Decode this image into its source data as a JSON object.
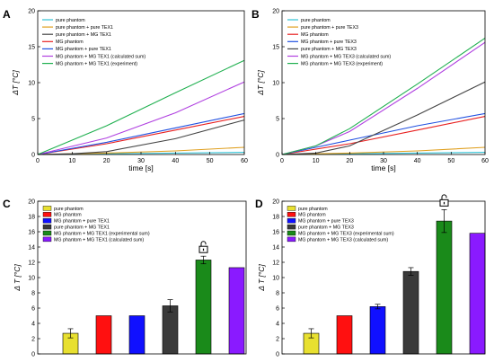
{
  "chart_data": [
    {
      "panel": "A",
      "type": "line",
      "xlabel": "time [s]",
      "ylabel": "ΔT [°C]",
      "xlim": [
        0,
        60
      ],
      "ylim": [
        0,
        20
      ],
      "xticks": [
        "0",
        "10",
        "20",
        "30",
        "40",
        "50",
        "60"
      ],
      "yticks": [
        "0",
        "5",
        "10",
        "15",
        "20"
      ],
      "legend_position": "top-left",
      "series": [
        {
          "name": "pure phantom",
          "color": "#33c3d6",
          "x": [
            0,
            60
          ],
          "y": [
            0,
            0.3
          ]
        },
        {
          "name": "pure phantom + pure TEX1",
          "color": "#e0a020",
          "x": [
            0,
            20,
            40,
            60
          ],
          "y": [
            0,
            0.2,
            0.5,
            1.0
          ]
        },
        {
          "name": "pure phantom + MG TEX1",
          "color": "#444444",
          "x": [
            0,
            10,
            20,
            40,
            60
          ],
          "y": [
            0,
            0.1,
            0.4,
            2.2,
            4.8
          ]
        },
        {
          "name": "MG phantom",
          "color": "#e82020",
          "x": [
            0,
            20,
            40,
            60
          ],
          "y": [
            0,
            1.5,
            3.4,
            5.3
          ]
        },
        {
          "name": "MG phantom + pure TEX1",
          "color": "#2050e0",
          "x": [
            0,
            20,
            40,
            60
          ],
          "y": [
            0,
            1.7,
            3.7,
            5.7
          ]
        },
        {
          "name": "MG phantom + MG TEX1 (calculated sum)",
          "color": "#b040e0",
          "x": [
            0,
            20,
            40,
            60
          ],
          "y": [
            0,
            2.3,
            5.8,
            10.1
          ]
        },
        {
          "name": "MG phantom + MG TEX1 (experiment)",
          "color": "#20b050",
          "x": [
            0,
            20,
            40,
            60
          ],
          "y": [
            0,
            4.0,
            8.6,
            13.1
          ]
        }
      ]
    },
    {
      "panel": "B",
      "type": "line",
      "xlabel": "time [s]",
      "ylabel": "ΔT [°C]",
      "xlim": [
        0,
        60
      ],
      "ylim": [
        0,
        20
      ],
      "xticks": [
        "0",
        "10",
        "20",
        "30",
        "40",
        "50",
        "60"
      ],
      "yticks": [
        "0",
        "5",
        "10",
        "15",
        "20"
      ],
      "legend_position": "top-left",
      "series": [
        {
          "name": "pure phantom",
          "color": "#33c3d6",
          "x": [
            0,
            60
          ],
          "y": [
            0,
            0.3
          ]
        },
        {
          "name": "pure phantom + pure TEX3",
          "color": "#e0a020",
          "x": [
            0,
            20,
            40,
            60
          ],
          "y": [
            0,
            0.2,
            0.5,
            1.0
          ]
        },
        {
          "name": "MG phantom",
          "color": "#e82020",
          "x": [
            0,
            20,
            40,
            60
          ],
          "y": [
            0,
            1.5,
            3.4,
            5.3
          ]
        },
        {
          "name": "MG phantom + pure TEX3",
          "color": "#2050e0",
          "x": [
            0,
            10,
            20,
            40,
            60
          ],
          "y": [
            0,
            1.0,
            2.0,
            4.0,
            5.7
          ]
        },
        {
          "name": "pure phantom + MG TEX3",
          "color": "#444444",
          "x": [
            0,
            10,
            20,
            40,
            60
          ],
          "y": [
            0,
            0.2,
            1.2,
            5.5,
            10.1
          ]
        },
        {
          "name": "MG phantom + MG TEX3 (calculated sum)",
          "color": "#b040e0",
          "x": [
            0,
            10,
            20,
            40,
            60
          ],
          "y": [
            0,
            1.2,
            3.2,
            9.2,
            15.6
          ]
        },
        {
          "name": "MG phantom + MG TEX3 (experiment)",
          "color": "#20b050",
          "x": [
            0,
            10,
            20,
            40,
            60
          ],
          "y": [
            0,
            1.2,
            3.6,
            9.8,
            16.2
          ]
        }
      ]
    },
    {
      "panel": "C",
      "type": "bar",
      "ylabel": "Δ T [°C]",
      "ylim": [
        0,
        20
      ],
      "yticks": [
        "0",
        "2",
        "4",
        "6",
        "8",
        "10",
        "12",
        "14",
        "16",
        "18",
        "20"
      ],
      "legend_position": "top-left",
      "lock_icon": "unlocked-padlock-icon",
      "bars": [
        {
          "name": "pure phantom",
          "value": 2.7,
          "error": 0.6,
          "color": "#e8e030"
        },
        {
          "name": "MG phantom",
          "value": 5.0,
          "error": 0,
          "color": "#ff1010"
        },
        {
          "name": "MG phantom + pure TEX1",
          "value": 5.0,
          "error": 0,
          "color": "#1010ff"
        },
        {
          "name": "pure phantom + MG TEX1",
          "value": 6.3,
          "error": 0.8,
          "color": "#3a3a3a"
        },
        {
          "name": "MG phantom + MG TEX1 (experimental sum)",
          "value": 12.3,
          "error": 0.5,
          "color": "#1a8a1a"
        },
        {
          "name": "MG phantom + MG TEX1 (calculated sum)",
          "value": 11.3,
          "error": 0,
          "color": "#8a1aff"
        }
      ]
    },
    {
      "panel": "D",
      "type": "bar",
      "ylabel": "Δ T [°C]",
      "ylim": [
        0,
        20
      ],
      "yticks": [
        "0",
        "2",
        "4",
        "6",
        "8",
        "10",
        "12",
        "14",
        "16",
        "18",
        "20"
      ],
      "legend_position": "top-left",
      "lock_icon": "unlocked-padlock-icon",
      "bars": [
        {
          "name": "pure phantom",
          "value": 2.7,
          "error": 0.6,
          "color": "#e8e030"
        },
        {
          "name": "MG phantom",
          "value": 5.0,
          "error": 0,
          "color": "#ff1010"
        },
        {
          "name": "MG phantom + pure TEX3",
          "value": 6.2,
          "error": 0.3,
          "color": "#1010ff"
        },
        {
          "name": "pure phantom + MG TEX3",
          "value": 10.8,
          "error": 0.5,
          "color": "#3a3a3a"
        },
        {
          "name": "MG phantom + MG TEX3 (experimental sum)",
          "value": 17.4,
          "error": 1.5,
          "color": "#1a8a1a"
        },
        {
          "name": "MG phantom + MG TEX3 (calculated sum)",
          "value": 15.8,
          "error": 0,
          "color": "#8a1aff"
        }
      ]
    }
  ]
}
